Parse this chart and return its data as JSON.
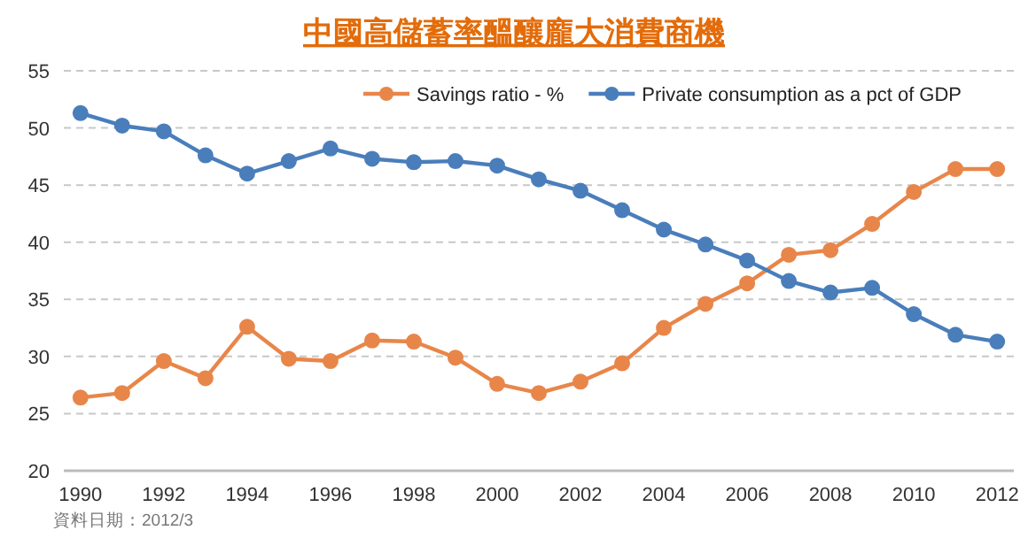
{
  "chart_data": {
    "type": "line",
    "title": "中國高儲蓄率醞釀龐大消費商機",
    "annotations": [
      "資料日期：2012/3"
    ],
    "x": [
      1990,
      1991,
      1992,
      1993,
      1994,
      1995,
      1996,
      1997,
      1998,
      1999,
      2000,
      2001,
      2002,
      2003,
      2004,
      2005,
      2006,
      2007,
      2008,
      2009,
      2010,
      2011,
      2012
    ],
    "series": [
      {
        "name": "Savings ratio - %",
        "color": "#e8864a",
        "values": [
          26.4,
          26.8,
          29.6,
          28.1,
          32.6,
          29.8,
          29.6,
          31.4,
          31.3,
          29.9,
          27.6,
          26.8,
          27.8,
          29.4,
          32.5,
          34.6,
          36.4,
          38.9,
          39.3,
          41.6,
          44.4,
          46.4,
          46.4
        ]
      },
      {
        "name": "Private consumption as a pct of GDP",
        "color": "#4a7ebb",
        "values": [
          51.3,
          50.2,
          49.7,
          47.6,
          46.0,
          47.1,
          48.2,
          47.3,
          47.0,
          47.1,
          46.7,
          45.5,
          44.5,
          42.8,
          41.1,
          39.8,
          38.4,
          36.6,
          35.6,
          36.0,
          33.7,
          31.9,
          31.3
        ]
      }
    ],
    "xlim": [
      1989.6,
      2012.4
    ],
    "xticks": [
      1990,
      1992,
      1994,
      1996,
      1998,
      2000,
      2002,
      2004,
      2006,
      2008,
      2010,
      2012
    ],
    "ylim": [
      20,
      55
    ],
    "yticks": [
      20,
      25,
      30,
      35,
      40,
      45,
      50,
      55
    ],
    "grid": "y",
    "legend": "top",
    "marker": "circle"
  }
}
